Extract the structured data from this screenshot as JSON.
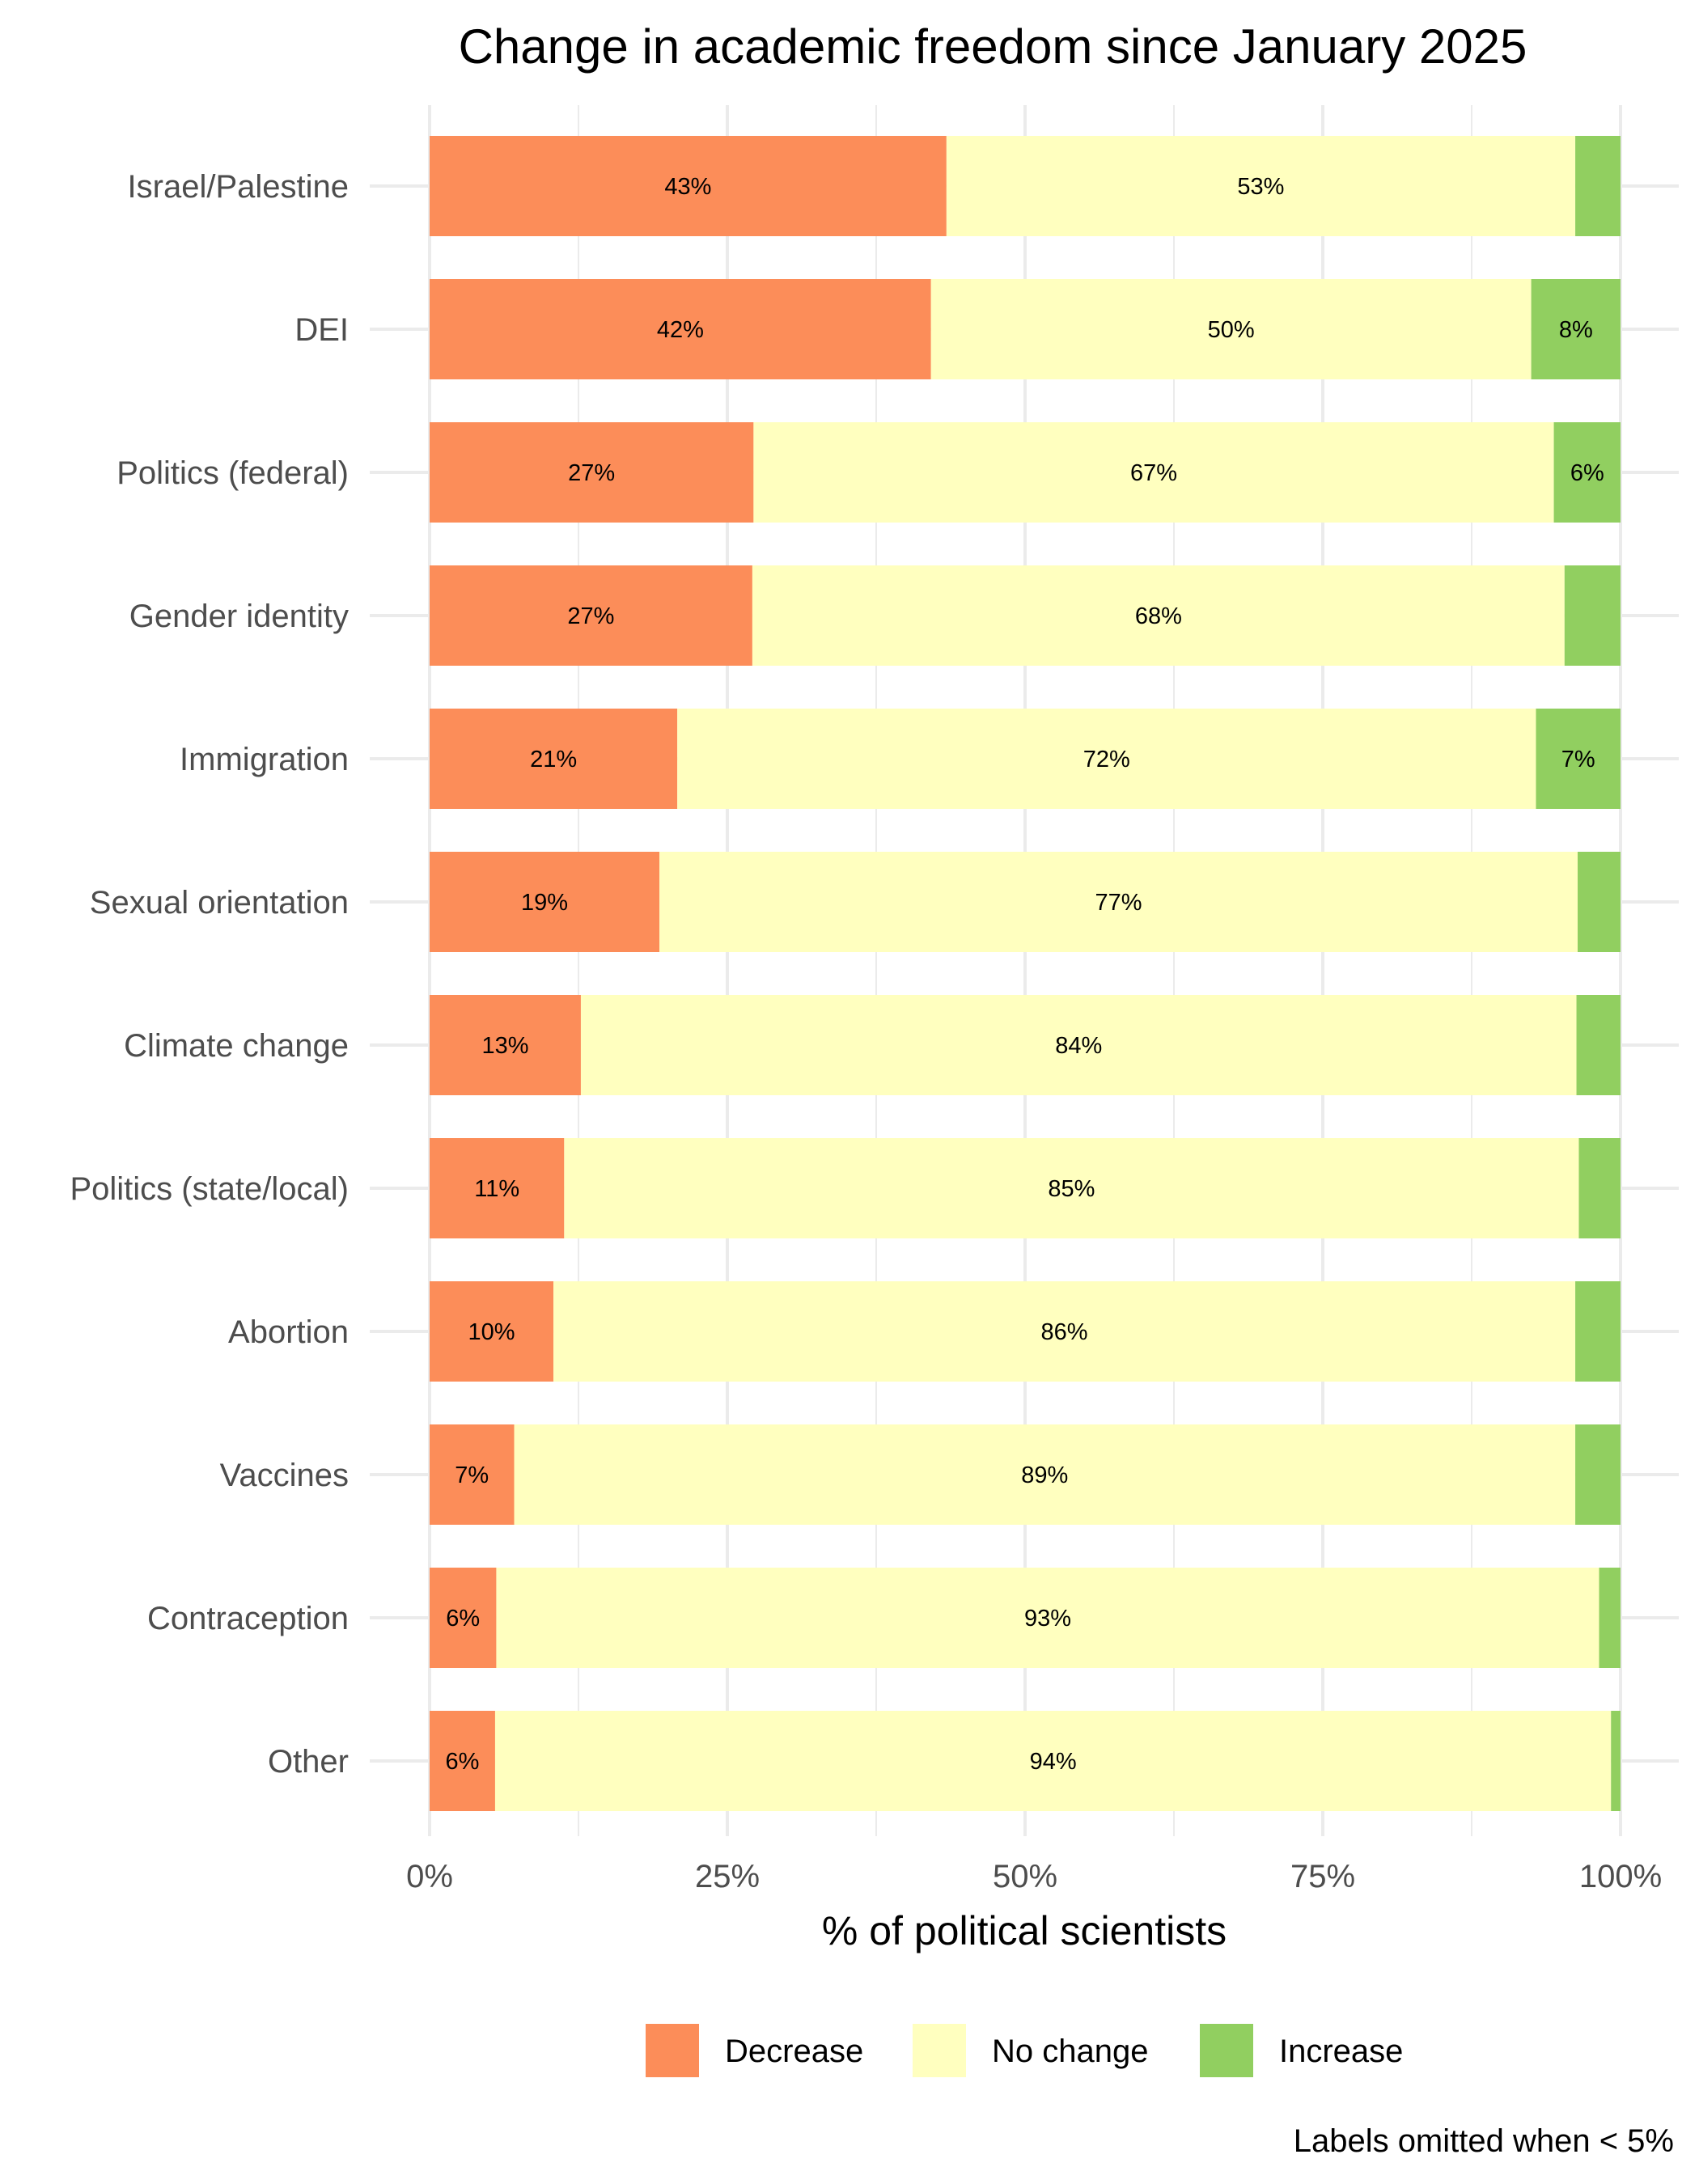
{
  "chart_data": {
    "type": "bar",
    "orientation": "horizontal",
    "stacked": true,
    "title": "Change in academic freedom since January 2025",
    "xlabel": "% of political scientists",
    "ylabel": "",
    "xlim": [
      0,
      100
    ],
    "xticks": [
      0,
      25,
      50,
      75,
      100
    ],
    "xtick_labels": [
      "0%",
      "25%",
      "50%",
      "75%",
      "100%"
    ],
    "grid": true,
    "legend_position": "bottom",
    "caption": "Labels omitted when < 5%",
    "label_threshold": 5,
    "categories": [
      "Israel/Palestine",
      "DEI",
      "Politics (federal)",
      "Gender identity",
      "Immigration",
      "Sexual orientation",
      "Climate change",
      "Politics (state/local)",
      "Abortion",
      "Vaccines",
      "Contraception",
      "Other"
    ],
    "series": [
      {
        "name": "Decrease",
        "color": "#fc8d59",
        "values": [
          43.4,
          42.1,
          27.2,
          27.1,
          20.8,
          19.3,
          12.7,
          11.3,
          10.4,
          7.1,
          5.6,
          5.5
        ]
      },
      {
        "name": "No change",
        "color": "#ffffbf",
        "values": [
          52.8,
          50.4,
          67.2,
          68.2,
          72.1,
          77.1,
          83.6,
          85.2,
          85.8,
          89.1,
          92.6,
          93.7
        ]
      },
      {
        "name": "Increase",
        "color": "#91cf60",
        "values": [
          3.8,
          7.5,
          5.6,
          4.7,
          7.1,
          3.6,
          3.7,
          3.5,
          3.8,
          3.8,
          1.8,
          0.8
        ]
      }
    ]
  }
}
